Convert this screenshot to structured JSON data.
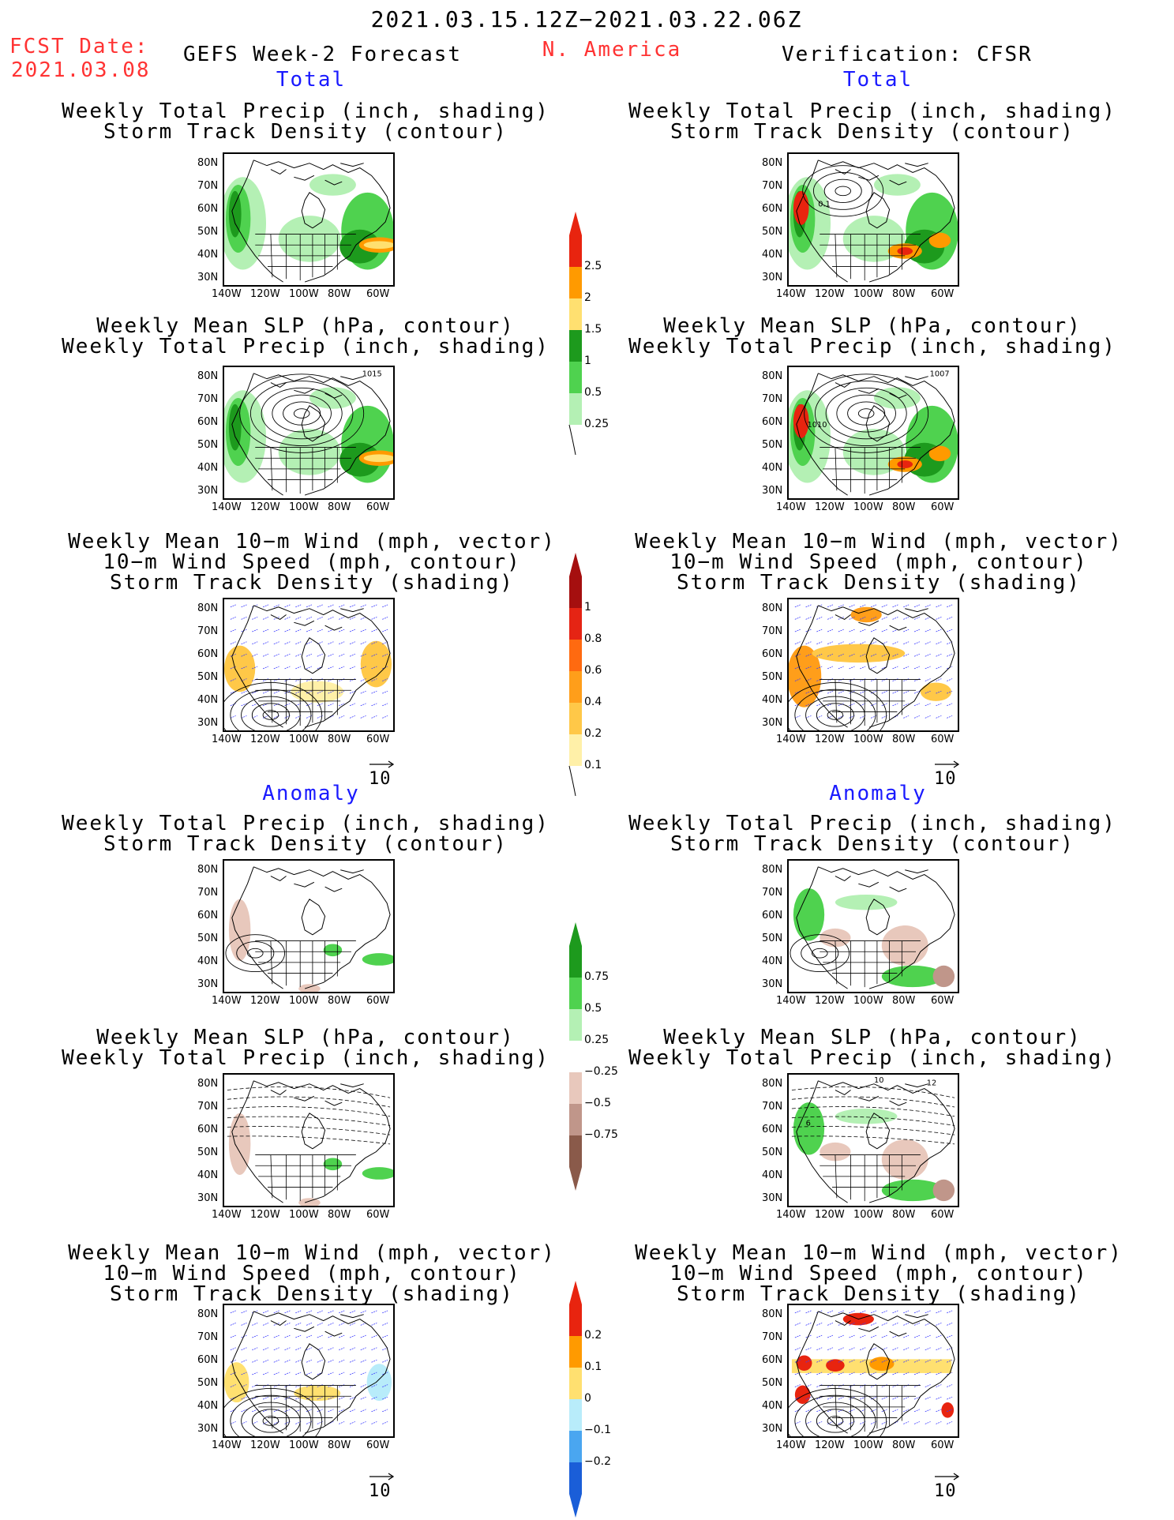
{
  "header": {
    "date_range": "2021.03.15.12Z−2021.03.22.06Z",
    "fcst_label": "FCST Date:",
    "fcst_date": "2021.03.08",
    "model_title": "GEFS Week-2 Forecast",
    "region": "N. America",
    "verification": "Verification: CFSR"
  },
  "sections": {
    "total": "Total",
    "anomaly": "Anomaly"
  },
  "panel_titles": {
    "precip_storm": [
      "Weekly Total Precip (inch, shading)",
      "Storm Track Density (contour)"
    ],
    "slp_precip": [
      "Weekly Mean SLP (hPa, contour)",
      "Weekly Total Precip (inch, shading)"
    ],
    "wind_storm": [
      "Weekly Mean 10−m Wind (mph, vector)",
      "10−m Wind Speed (mph, contour)",
      "Storm Track Density (shading)"
    ]
  },
  "axes": {
    "lat_ticks": [
      "80N",
      "70N",
      "60N",
      "50N",
      "40N",
      "30N"
    ],
    "lon_ticks": [
      "140W",
      "120W",
      "100W",
      "80W",
      "60W"
    ]
  },
  "map_annotations": {
    "gefs_total_slp_high": "1015",
    "cfsr_total_slp_high": "1007",
    "cfsr_total_slp_low": "1010",
    "cfsr_total_storm_label": "0.1",
    "cfsr_anom_slp_label_a": "10",
    "cfsr_anom_slp_label_b": "12",
    "cfsr_anom_slp_label_c": "6"
  },
  "vector_reference": "10",
  "colorbars": {
    "total_precip": {
      "labels": [
        "2.5",
        "2",
        "1.5",
        "1",
        "0.5",
        "0.25"
      ],
      "colors": [
        "#e8240f",
        "#ff9a00",
        "#ffe070",
        "#1d9a1d",
        "#4fd24f",
        "#b4f0b4"
      ]
    },
    "storm_density": {
      "labels": [
        "1",
        "0.8",
        "0.6",
        "0.4",
        "0.2",
        "0.1"
      ],
      "colors": [
        "#a50f0f",
        "#e52414",
        "#ff6a10",
        "#ff9e1a",
        "#ffc848",
        "#fff0a8"
      ]
    },
    "anom_precip": {
      "labels": [
        "0.75",
        "0.5",
        "0.25",
        "−0.25",
        "−0.5",
        "−0.75"
      ],
      "colors": [
        "#1d9a1d",
        "#4fd24f",
        "#b4f0b4",
        "#ffffff",
        "#e8c8bc",
        "#c0968a",
        "#8a5a4a"
      ]
    },
    "anom_storm": {
      "labels": [
        "0.2",
        "0.1",
        "0",
        "−0.1",
        "−0.2"
      ],
      "colors": [
        "#e8240f",
        "#ff9a00",
        "#ffe070",
        "#b8ecfa",
        "#4aa6f0",
        "#1a5ed8"
      ]
    }
  }
}
